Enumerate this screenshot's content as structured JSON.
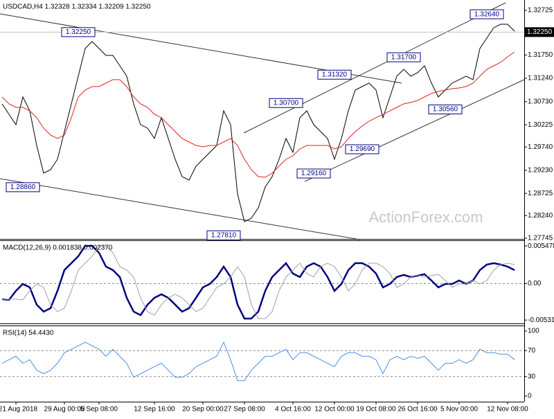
{
  "chart_data": [
    {
      "type": "line",
      "title": "USDCAD,H4  1.32328 1.32334 1.32209 1.32250",
      "watermark": "ActionForex.com",
      "categories": [
        null,
        null,
        "21 Aug 2018",
        null,
        null,
        null,
        null,
        null,
        null,
        "29 Aug 00:00",
        null,
        null,
        null,
        null,
        "5 Sep 08:00",
        null,
        null,
        null,
        null,
        null,
        null,
        null,
        "12 Sep 16:00",
        null,
        null,
        null,
        null,
        null,
        null,
        "20 Sep 00:00",
        null,
        null,
        null,
        null,
        null,
        "27 Sep 08:00",
        null,
        null,
        null,
        null,
        null,
        null,
        "4 Oct 16:00",
        null,
        null,
        null,
        null,
        null,
        "12 Oct 00:00",
        null,
        null,
        null,
        null,
        null,
        "19 Oct 08:00",
        null,
        null,
        null,
        null,
        null,
        "26 Oct 16:00",
        null,
        null,
        null,
        null,
        null,
        "5 Nov 00:00",
        null,
        null,
        null,
        null,
        null,
        null,
        "12 Nov 08:00",
        null
      ],
      "series": [
        {
          "name": "USDCAD",
          "color": "#000000",
          "values": [
            1.30682,
            1.30454,
            1.30227,
            1.30833,
            1.3053,
            1.29773,
            1.29168,
            1.29244,
            1.29471,
            1.30076,
            1.30682,
            1.31287,
            1.31893,
            1.32044,
            1.31893,
            1.31741,
            1.31741,
            1.31514,
            1.31287,
            1.30682,
            1.30227,
            1.30152,
            1.29925,
            1.30379,
            1.29925,
            1.29471,
            1.29092,
            1.29016,
            1.29319,
            1.29471,
            1.29622,
            1.29773,
            1.3053,
            1.30227,
            1.28714,
            1.28108,
            1.28184,
            1.28411,
            1.28865,
            1.29092,
            1.29471,
            1.29925,
            1.29622,
            1.30379,
            1.3053,
            1.30227,
            1.30076,
            1.29925,
            1.29471,
            1.29925,
            1.3053,
            1.30984,
            1.3106,
            1.31136,
            1.30984,
            1.30379,
            1.30833,
            1.31287,
            1.31438,
            1.31287,
            1.31363,
            1.31514,
            1.31136,
            1.30833,
            1.30984,
            1.31136,
            1.31211,
            1.31287,
            1.31211,
            1.31893,
            1.3212,
            1.32347,
            1.32422,
            1.32422,
            1.32271
          ]
        },
        {
          "name": "MA",
          "color": "#e02020",
          "values": [
            1.30833,
            1.30682,
            1.30606,
            1.30606,
            1.3053,
            1.30379,
            1.30152,
            1.3,
            1.29925,
            1.3,
            1.30379,
            1.30833,
            1.30984,
            1.3106,
            1.3106,
            1.31136,
            1.31211,
            1.31211,
            1.3106,
            1.30833,
            1.30682,
            1.30606,
            1.30454,
            1.30379,
            1.30227,
            1.30076,
            1.29925,
            1.29849,
            1.29773,
            1.29743,
            1.29773,
            1.29773,
            1.29849,
            1.29925,
            1.29773,
            1.29471,
            1.29244,
            1.29092,
            1.29077,
            1.29168,
            1.29319,
            1.29471,
            1.29546,
            1.29698,
            1.29773,
            1.29773,
            1.29773,
            1.29773,
            1.29698,
            1.29743,
            1.29925,
            1.30076,
            1.30197,
            1.30303,
            1.30379,
            1.30454,
            1.3053,
            1.30606,
            1.30682,
            1.30712,
            1.30757,
            1.30833,
            1.30909,
            1.30954,
            1.30984,
            1.31015,
            1.3103,
            1.3106,
            1.31136,
            1.31287,
            1.31438,
            1.31514,
            1.3159,
            1.31711,
            1.31817
          ]
        }
      ],
      "ylim": [
        1.2773,
        1.32952
      ],
      "yticks": [
        {
          "value": 1.32725,
          "label": "1.32725"
        },
        {
          "value": 1.3175,
          "label": "1.31750"
        },
        {
          "value": 1.3124,
          "label": "1.31240"
        },
        {
          "value": 1.3073,
          "label": "1.30730"
        },
        {
          "value": 1.30225,
          "label": "1.30225"
        },
        {
          "value": 1.2974,
          "label": "1.29740"
        },
        {
          "value": 1.2923,
          "label": "1.29230"
        },
        {
          "value": 1.28725,
          "label": "1.28725"
        },
        {
          "value": 1.2824,
          "label": "1.28240"
        },
        {
          "value": 1.27745,
          "label": "1.27745"
        }
      ],
      "last_price": {
        "value": 1.3225,
        "label": "1.32250"
      },
      "annotations": [
        {
          "x": 11,
          "y": 1.3225,
          "label": "1.32250"
        },
        {
          "x": 70,
          "y": 1.3264,
          "label": "1.32640"
        },
        {
          "x": 58,
          "y": 1.317,
          "label": "1.31700"
        },
        {
          "x": 48,
          "y": 1.3132,
          "label": "1.31320"
        },
        {
          "x": 41,
          "y": 1.307,
          "label": "1.30700"
        },
        {
          "x": 64,
          "y": 1.3056,
          "label": "1.30560"
        },
        {
          "x": 52,
          "y": 1.2969,
          "label": "1.29690"
        },
        {
          "x": 45,
          "y": 1.2916,
          "label": "1.29160"
        },
        {
          "x": 3,
          "y": 1.2886,
          "label": "1.28860"
        },
        {
          "x": 32,
          "y": 1.2781,
          "label": "1.27810"
        }
      ]
    },
    {
      "type": "line",
      "title": "MACD(12,26,9) 0.001838 0.002370",
      "series": [
        {
          "name": "MACD",
          "color": "#00007f",
          "values": [
            -0.00227,
            -0.00237,
            -0.00106,
            -5e-05,
            -0.00055,
            -0.00307,
            -0.00408,
            -0.00358,
            -0.00106,
            0.00197,
            0.00297,
            0.00398,
            0.00549,
            0.00549,
            0.00449,
            0.00247,
            0.00197,
            0.00096,
            -0.00207,
            -0.00408,
            -0.00459,
            -0.00307,
            -0.00207,
            -0.00156,
            -0.00207,
            -0.00307,
            -0.00408,
            -0.00358,
            -0.00207,
            -0.00055,
            -5e-05,
            0.00096,
            0.00247,
            0.00096,
            -0.00307,
            -0.00509,
            -0.00509,
            -0.00408,
            -0.00106,
            0.00096,
            0.00197,
            0.00297,
            0.00146,
            0.00096,
            0.00247,
            0.00297,
            0.00247,
            0.00096,
            -0.00106,
            -5e-05,
            0.00197,
            0.00297,
            0.00297,
            0.00247,
            0.00146,
            -0.00055,
            -5e-05,
            0.00096,
            0.00126,
            0.00096,
            0.00116,
            0.00136,
            0.00045,
            -0.00055,
            -5e-05,
            -5e-05,
            0.00045,
            -5e-05,
            0.00045,
            0.00197,
            0.00277,
            0.00297,
            0.00277,
            0.00247,
            0.00197
          ]
        },
        {
          "name": "Signal",
          "color": "#a0a0a0",
          "values": [
            -0.00227,
            -0.00227,
            -0.00227,
            -0.00237,
            -0.00106,
            -5e-05,
            -0.00055,
            -0.00307,
            -0.00408,
            -0.00358,
            -0.00106,
            0.00197,
            0.00297,
            0.00398,
            0.00549,
            0.00549,
            0.00449,
            0.00247,
            0.00197,
            0.00096,
            -0.00207,
            -0.00408,
            -0.00459,
            -0.00307,
            -0.00207,
            -0.00156,
            -0.00207,
            -0.00307,
            -0.00408,
            -0.00358,
            -0.00207,
            -0.00055,
            -5e-05,
            0.00096,
            0.00247,
            0.00096,
            -0.00307,
            -0.00509,
            -0.00509,
            -0.00408,
            -0.00106,
            0.00096,
            0.00197,
            0.00297,
            0.00146,
            0.00096,
            0.00247,
            0.00297,
            0.00247,
            0.00096,
            -0.00106,
            -5e-05,
            0.00197,
            0.00297,
            0.00297,
            0.00247,
            0.00146,
            -0.00055,
            -5e-05,
            0.00096,
            0.00126,
            0.00096,
            0.00116,
            0.00136,
            0.00045,
            -0.00055,
            -5e-05,
            -5e-05,
            0.00045,
            -5e-05,
            0.00045,
            0.00197,
            0.00277,
            0.00297,
            0.00277
          ]
        }
      ],
      "ylim": [
        -0.0058,
        0.0062
      ],
      "yticks": [
        0.005478,
        {
          "value": 0,
          "label": "0.00"
        },
        -0.005314
      ],
      "levels": [
        0
      ]
    },
    {
      "type": "line",
      "title": "RSI(14) 54.4430",
      "series": [
        {
          "name": "RSI",
          "color": "#4a90e2",
          "values": [
            50.5,
            55.9,
            61.3,
            50.5,
            55.9,
            39.8,
            34.4,
            39.8,
            50.5,
            66.7,
            72.0,
            77.4,
            82.8,
            77.4,
            72.0,
            61.3,
            72.0,
            61.3,
            50.5,
            29.0,
            34.4,
            39.8,
            45.2,
            50.5,
            39.8,
            29.0,
            29.0,
            34.4,
            45.2,
            50.5,
            55.9,
            61.3,
            82.8,
            55.9,
            23.7,
            23.7,
            39.8,
            50.5,
            61.3,
            61.3,
            66.7,
            72.0,
            55.9,
            66.7,
            66.7,
            61.3,
            55.9,
            50.5,
            45.2,
            61.3,
            66.7,
            66.7,
            61.3,
            61.3,
            55.9,
            34.4,
            55.9,
            61.3,
            55.9,
            61.3,
            58.1,
            61.3,
            50.5,
            39.8,
            50.5,
            50.5,
            55.9,
            50.5,
            55.9,
            72.0,
            66.7,
            66.7,
            64.5,
            64.5,
            55.9
          ]
        }
      ],
      "ylim": [
        -8.6,
        107.5
      ],
      "yticks": [
        100,
        70,
        30,
        0
      ],
      "levels": [
        70,
        30
      ]
    }
  ]
}
